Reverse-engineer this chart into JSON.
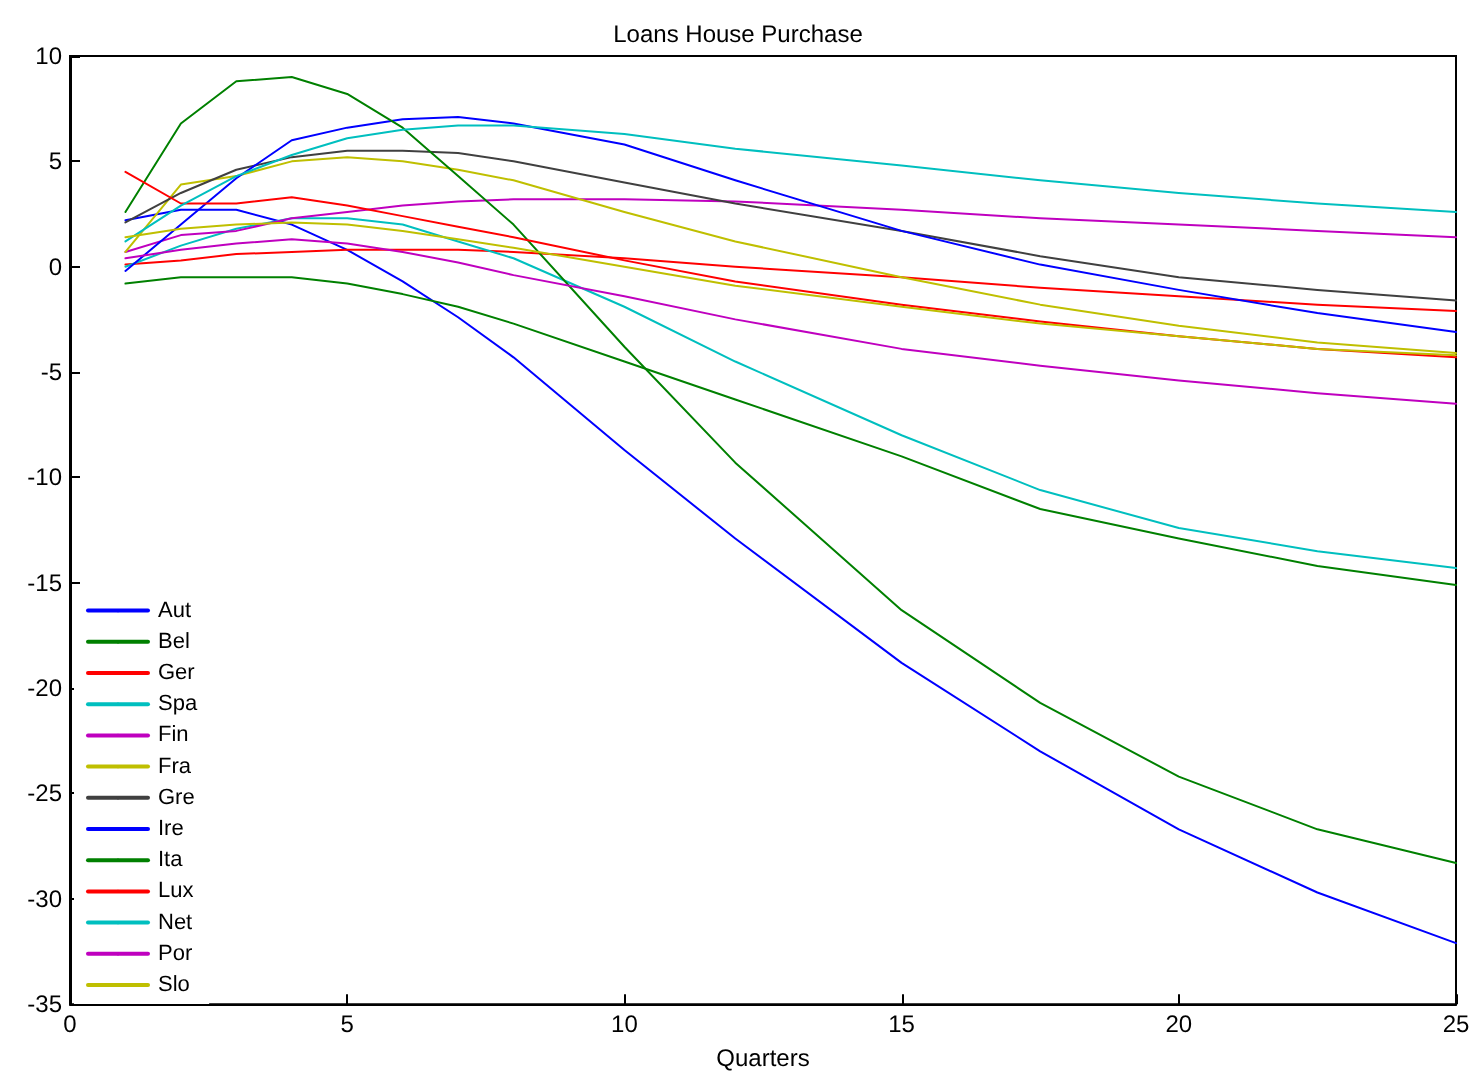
{
  "chart_data": {
    "type": "line",
    "title": "Loans House Purchase",
    "xlabel": "Quarters",
    "x": [
      1,
      2,
      3,
      4,
      5,
      6,
      7,
      8,
      10,
      12,
      15,
      17.5,
      20,
      22.5,
      25
    ],
    "series": [
      {
        "name": "Aut",
        "color": "#0000ff",
        "values": [
          2.2,
          2.7,
          2.7,
          2.0,
          0.8,
          -0.7,
          -2.4,
          -4.3,
          -8.7,
          -12.9,
          -18.8,
          -23.0,
          -26.7,
          -29.7,
          -32.1
        ]
      },
      {
        "name": "Bel",
        "color": "#008000",
        "values": [
          -0.8,
          -0.5,
          -0.5,
          -0.5,
          -0.8,
          -1.3,
          -1.9,
          -2.7,
          -4.5,
          -6.3,
          -9.0,
          -11.5,
          -12.9,
          -14.2,
          -15.1
        ]
      },
      {
        "name": "Ger",
        "color": "#ff0000",
        "values": [
          0.1,
          0.3,
          0.6,
          0.7,
          0.8,
          0.8,
          0.8,
          0.7,
          0.4,
          0.0,
          -0.5,
          -1.0,
          -1.4,
          -1.8,
          -2.1
        ]
      },
      {
        "name": "Spa",
        "color": "#00bfbf",
        "values": [
          0.0,
          1.0,
          1.8,
          2.3,
          2.3,
          2.0,
          1.2,
          0.4,
          -1.9,
          -4.5,
          -8.0,
          -10.6,
          -12.4,
          -13.5,
          -14.3
        ]
      },
      {
        "name": "Fin",
        "color": "#bf00bf",
        "values": [
          0.7,
          1.5,
          1.7,
          2.3,
          2.6,
          2.9,
          3.1,
          3.2,
          3.2,
          3.1,
          2.7,
          2.3,
          2.0,
          1.7,
          1.4
        ]
      },
      {
        "name": "Fra",
        "color": "#bfbf00",
        "values": [
          0.7,
          3.9,
          4.3,
          5.0,
          5.2,
          5.0,
          4.6,
          4.1,
          2.6,
          1.2,
          -0.5,
          -1.8,
          -2.8,
          -3.6,
          -4.1
        ]
      },
      {
        "name": "Gre",
        "color": "#404040",
        "values": [
          2.1,
          3.5,
          4.6,
          5.2,
          5.5,
          5.5,
          5.4,
          5.0,
          4.0,
          3.0,
          1.7,
          0.5,
          -0.5,
          -1.1,
          -1.6
        ]
      },
      {
        "name": "Ire",
        "color": "#0000ff",
        "values": [
          -0.2,
          2.0,
          4.2,
          6.0,
          6.6,
          7.0,
          7.1,
          6.8,
          5.8,
          4.1,
          1.7,
          0.1,
          -1.1,
          -2.2,
          -3.1
        ]
      },
      {
        "name": "Ita",
        "color": "#008000",
        "values": [
          2.6,
          6.8,
          8.8,
          9.0,
          8.2,
          6.6,
          4.3,
          2.0,
          -3.8,
          -9.3,
          -16.3,
          -20.7,
          -24.2,
          -26.7,
          -28.3
        ]
      },
      {
        "name": "Lux",
        "color": "#ff0000",
        "values": [
          4.5,
          3.0,
          3.0,
          3.3,
          2.9,
          2.4,
          1.9,
          1.4,
          0.3,
          -0.7,
          -1.8,
          -2.6,
          -3.3,
          -3.9,
          -4.3
        ]
      },
      {
        "name": "Net",
        "color": "#00bfbf",
        "values": [
          1.2,
          2.9,
          4.3,
          5.3,
          6.1,
          6.5,
          6.7,
          6.7,
          6.3,
          5.6,
          4.8,
          4.1,
          3.5,
          3.0,
          2.6
        ]
      },
      {
        "name": "Por",
        "color": "#bf00bf",
        "values": [
          0.4,
          0.8,
          1.1,
          1.3,
          1.1,
          0.7,
          0.2,
          -0.4,
          -1.4,
          -2.5,
          -3.9,
          -4.7,
          -5.4,
          -6.0,
          -6.5
        ]
      },
      {
        "name": "Slo",
        "color": "#bfbf00",
        "values": [
          1.4,
          1.8,
          2.0,
          2.1,
          2.0,
          1.7,
          1.3,
          0.9,
          0.0,
          -0.9,
          -1.9,
          -2.7,
          -3.3,
          -3.9,
          -4.2
        ]
      }
    ],
    "xlim": [
      0,
      25
    ],
    "xticks": [
      0,
      5,
      10,
      15,
      20,
      25
    ],
    "ylim": [
      -35,
      10
    ],
    "yticks": [
      -35,
      -30,
      -25,
      -20,
      -15,
      -10,
      -5,
      0,
      5,
      10
    ],
    "grid": false,
    "legend": "bottom left",
    "marker": "none",
    "line_style": "solid"
  }
}
